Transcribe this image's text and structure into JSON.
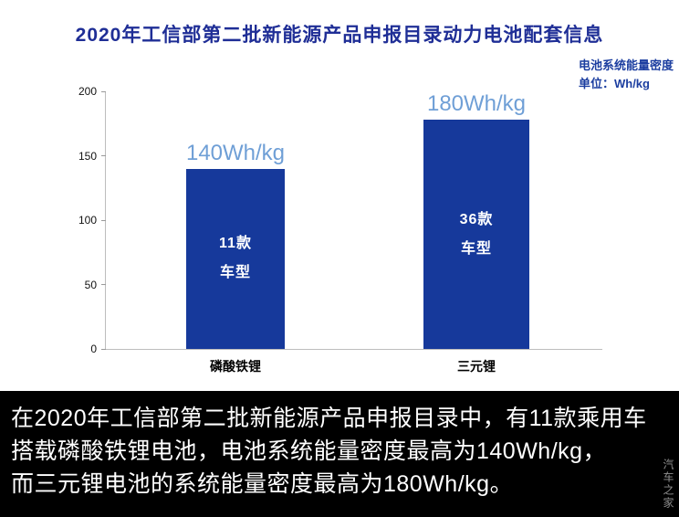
{
  "title": "2020年工信部第二批新能源产品申报目录动力电池配套信息",
  "unit_note": {
    "line1": "电池系统能量密度",
    "line2": "单位：Wh/kg"
  },
  "chart_data": {
    "type": "bar",
    "title": "2020年工信部第二批新能源产品申报目录动力电池配套信息",
    "categories": [
      "磷酸铁锂",
      "三元锂"
    ],
    "values": [
      140,
      180
    ],
    "value_labels": [
      "140Wh/kg",
      "180Wh/kg"
    ],
    "bar_annotations": [
      [
        "11款",
        "车型"
      ],
      [
        "36款",
        "车型"
      ]
    ],
    "ylim": [
      0,
      200
    ],
    "yticks": [
      0,
      50,
      100,
      150,
      200
    ],
    "grid": false,
    "legend": "none",
    "colors": {
      "bar": "#16399b",
      "value_label": "#6f9fd6",
      "title": "#1f2e96",
      "caption_bg": "#000000",
      "caption_text": "#ffffff"
    }
  },
  "caption": {
    "lines": [
      "在2020年工信部第二批新能源产品申报目录中，有11款乘用车",
      "搭载磷酸铁锂电池，电池系统能量密度最高为140Wh/kg，",
      "而三元锂电池的系统能量密度最高为180Wh/kg。"
    ]
  },
  "watermark": "汽车之家"
}
